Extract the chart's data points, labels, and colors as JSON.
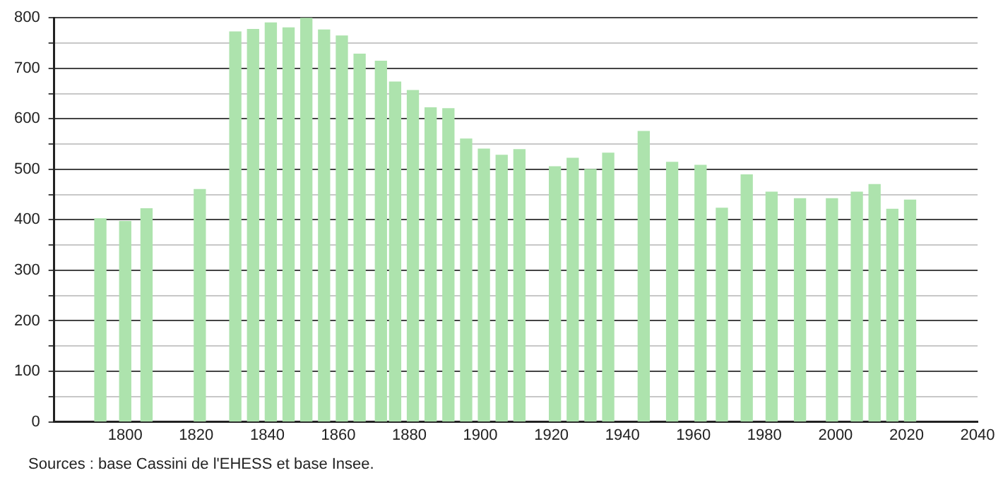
{
  "chart_data": {
    "type": "bar",
    "x": [
      1793,
      1800,
      1806,
      1821,
      1831,
      1836,
      1841,
      1846,
      1851,
      1856,
      1861,
      1866,
      1872,
      1876,
      1881,
      1886,
      1891,
      1896,
      1901,
      1906,
      1911,
      1921,
      1926,
      1931,
      1936,
      1946,
      1954,
      1962,
      1968,
      1975,
      1982,
      1990,
      1999,
      2006,
      2011,
      2016,
      2021
    ],
    "values": [
      402,
      397,
      422,
      460,
      772,
      777,
      790,
      780,
      800,
      776,
      764,
      728,
      714,
      673,
      656,
      622,
      620,
      560,
      540,
      528,
      539,
      505,
      522,
      500,
      532,
      575,
      514,
      508,
      423,
      489,
      455,
      442,
      442,
      455,
      470,
      421,
      439
    ],
    "color": "#ade3ad",
    "xlim": [
      1780,
      2040
    ],
    "xticks": [
      1800,
      1820,
      1840,
      1860,
      1880,
      1900,
      1920,
      1940,
      1960,
      1980,
      2000,
      2020,
      2040
    ],
    "ylim": [
      0,
      800
    ],
    "yticks": [
      0,
      {
        "value": 50,
        "label": null
      },
      100,
      {
        "value": 150,
        "label": null
      },
      200,
      {
        "value": 250,
        "label": null
      },
      300,
      {
        "value": 350,
        "label": null
      },
      400,
      {
        "value": 450,
        "label": null
      },
      500,
      {
        "value": 550,
        "label": null
      },
      600,
      {
        "value": 650,
        "label": null
      },
      700,
      {
        "value": 750,
        "label": null
      },
      800
    ],
    "grid": "y",
    "legend": false,
    "annotations": [
      "Sources : base Cassini de l'EHESS et base Insee."
    ]
  }
}
